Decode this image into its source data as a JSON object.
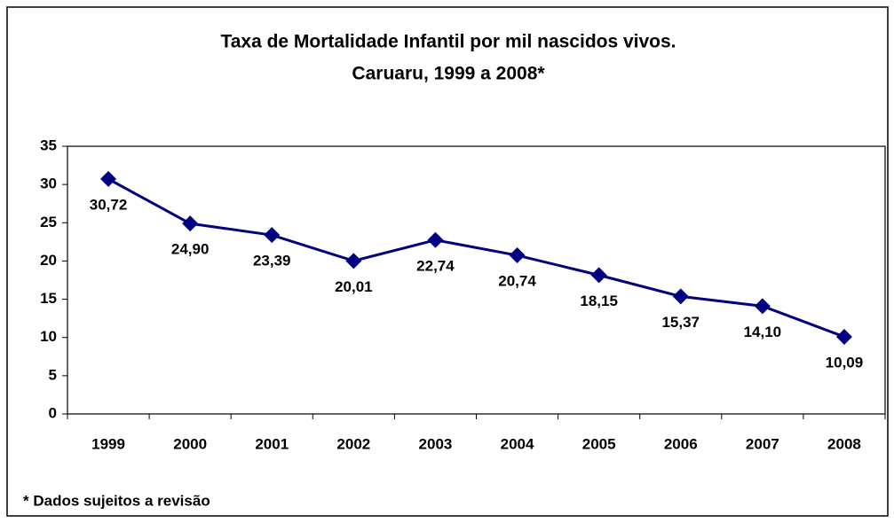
{
  "chart_data": {
    "type": "line",
    "title": [
      "Taxa de Mortalidade Infantil por mil nascidos vivos.",
      "Caruaru, 1999 a 2008*"
    ],
    "categories": [
      "1999",
      "2000",
      "2001",
      "2002",
      "2003",
      "2004",
      "2005",
      "2006",
      "2007",
      "2008"
    ],
    "values": [
      30.72,
      24.9,
      23.39,
      20.01,
      22.74,
      20.74,
      18.15,
      15.37,
      14.1,
      10.09
    ],
    "value_labels": [
      "30,72",
      "24,90",
      "23,39",
      "20,01",
      "22,74",
      "20,74",
      "18,15",
      "15,37",
      "14,10",
      "10,09"
    ],
    "color": "#000080",
    "ylim": [
      0,
      35
    ],
    "yticks": [
      0,
      5,
      10,
      15,
      20,
      25,
      30,
      35
    ],
    "footnote": "* Dados sujeitos a revisão"
  }
}
